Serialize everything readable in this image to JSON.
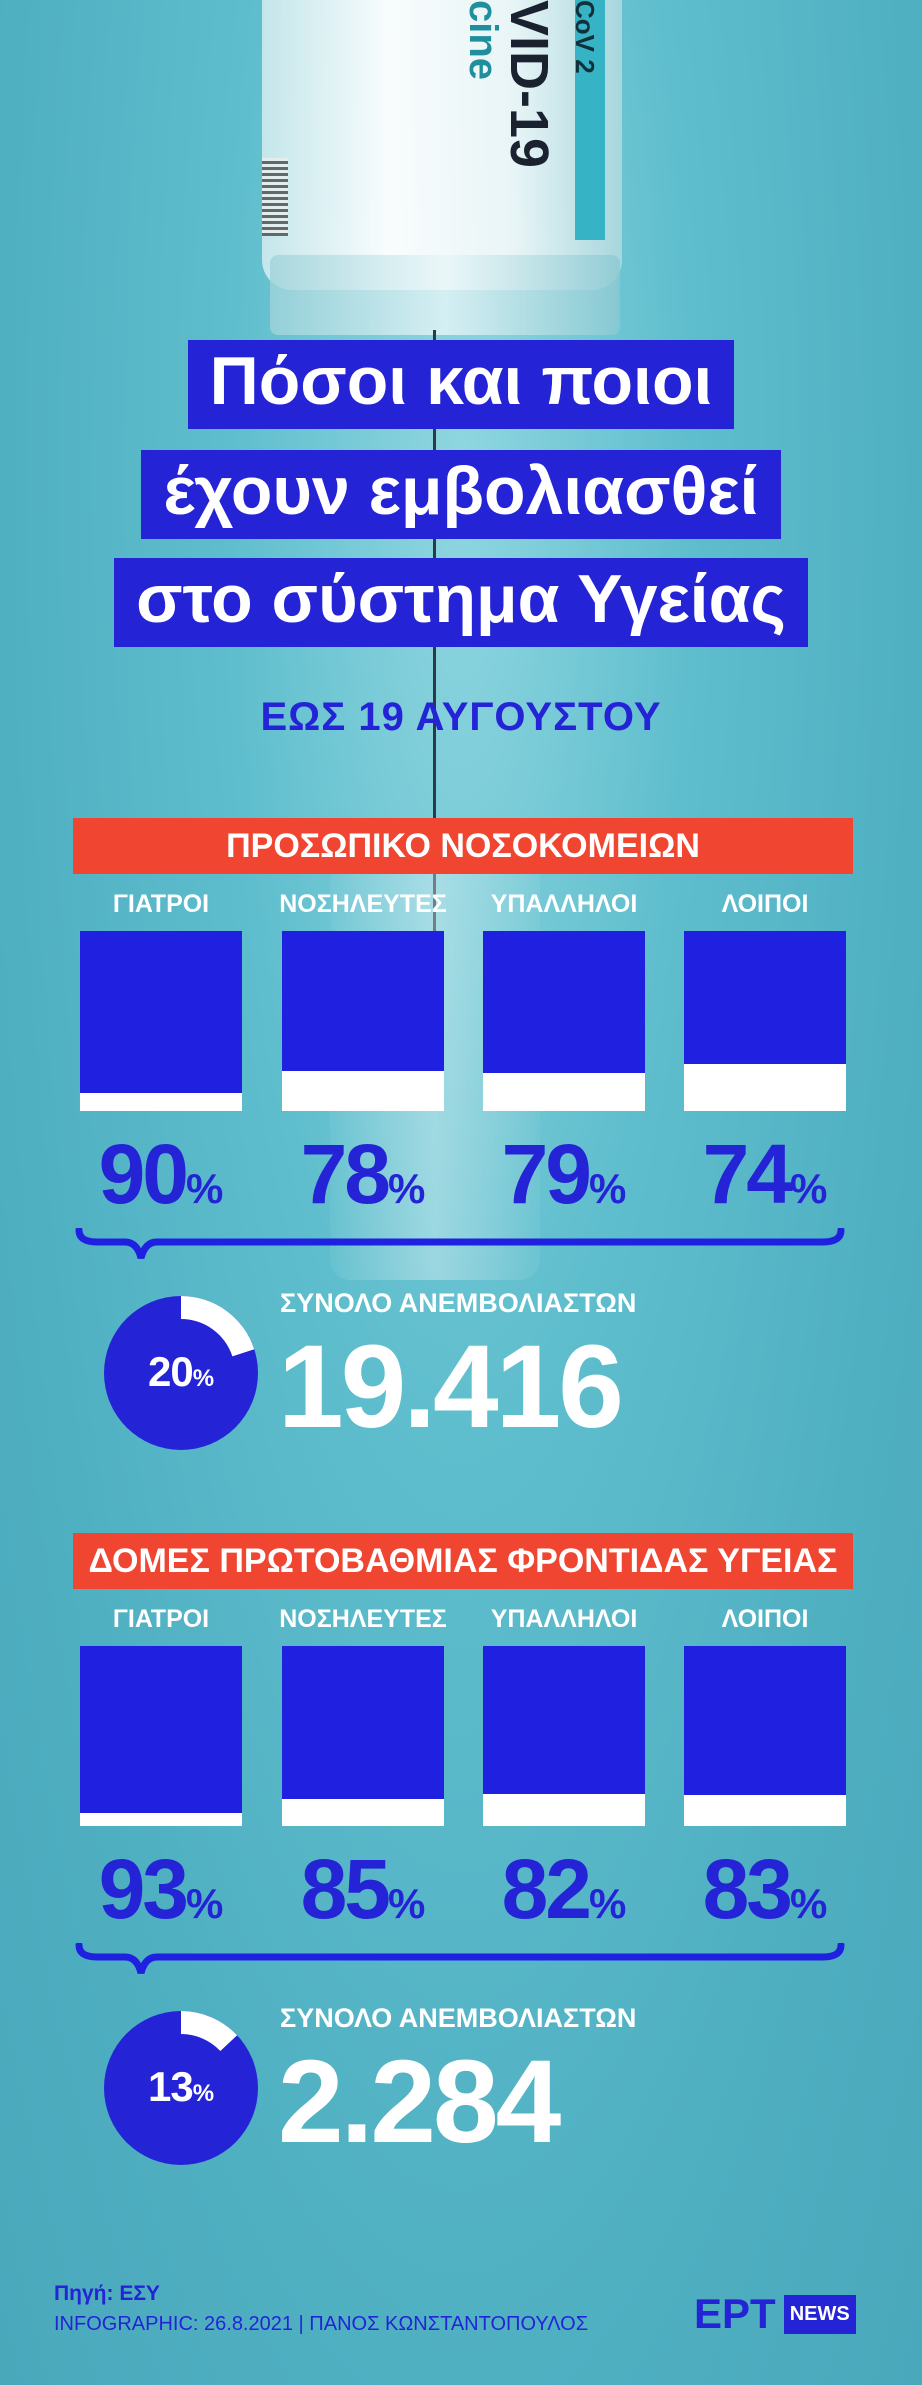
{
  "title_lines": [
    "Πόσοι και ποιοι",
    "έχουν εμβολιασθεί",
    "στο σύστημα Υγείας"
  ],
  "subtitle": "ΕΩΣ 19 ΑΥΓΟΥΣΤΟΥ",
  "background_text": {
    "vial_main": "VID-19",
    "vial_sub": "cine",
    "vial_stripe": "CoV 2"
  },
  "colors": {
    "accent_blue": "#2424d6",
    "section_red": "#f04530",
    "background": "#5fbecd"
  },
  "sections": [
    {
      "header": "ΠΡΟΣΩΠΙΚΟ ΝΟΣΟΚΟΜΕΙΩΝ",
      "columns": [
        {
          "label": "ΓΙΑΤΡΟΙ",
          "value": 90,
          "unit": "%"
        },
        {
          "label": "ΝΟΣΗΛΕΥΤΕΣ",
          "value": 78,
          "unit": "%"
        },
        {
          "label": "ΥΠΑΛΛΗΛΟΙ",
          "value": 79,
          "unit": "%"
        },
        {
          "label": "ΛΟΙΠΟΙ",
          "value": 74,
          "unit": "%"
        }
      ],
      "unvaccinated_pct": 20,
      "unvaccinated_pct_label": "20",
      "total_label": "ΣΥΝΟΛΟ ΑΝΕΜΒΟΛΙΑΣΤΩΝ",
      "total_value": "19.416"
    },
    {
      "header": "ΔΟΜΕΣ ΠΡΩΤΟΒΑΘΜΙΑΣ ΦΡΟΝΤΙΔΑΣ ΥΓΕΙΑΣ",
      "columns": [
        {
          "label": "ΓΙΑΤΡΟΙ",
          "value": 93,
          "unit": "%"
        },
        {
          "label": "ΝΟΣΗΛΕΥΤΕΣ",
          "value": 85,
          "unit": "%"
        },
        {
          "label": "ΥΠΑΛΛΗΛΟΙ",
          "value": 82,
          "unit": "%"
        },
        {
          "label": "ΛΟΙΠΟΙ",
          "value": 83,
          "unit": "%"
        }
      ],
      "unvaccinated_pct": 13,
      "unvaccinated_pct_label": "13",
      "total_label": "ΣΥΝΟΛΟ ΑΝΕΜΒΟΛΙΑΣΤΩΝ",
      "total_value": "2.284"
    }
  ],
  "footer": {
    "source": "Πηγή: ΕΣΥ",
    "credit": "INFOGRAPHIC: 26.8.2021 | ΠΑΝΟΣ ΚΩΝΣΤΑΝΤΟΠΟΥΛΟΣ",
    "logo_text": "ΕΡΤ",
    "logo_badge": "NEWS"
  },
  "chart_data": [
    {
      "type": "bar",
      "title": "ΠΡΟΣΩΠΙΚΟ ΝΟΣΟΚΟΜΕΙΩΝ",
      "categories": [
        "ΓΙΑΤΡΟΙ",
        "ΝΟΣΗΛΕΥΤΕΣ",
        "ΥΠΑΛΛΗΛΟΙ",
        "ΛΟΙΠΟΙ"
      ],
      "values": [
        90,
        78,
        79,
        74
      ],
      "ylim": [
        0,
        100
      ],
      "unit": "%"
    },
    {
      "type": "pie",
      "values": [
        20,
        80
      ],
      "unit": "%"
    },
    {
      "type": "bar",
      "title": "ΔΟΜΕΣ ΠΡΩΤΟΒΑΘΜΙΑΣ ΦΡΟΝΤΙΔΑΣ ΥΓΕΙΑΣ",
      "categories": [
        "ΓΙΑΤΡΟΙ",
        "ΝΟΣΗΛΕΥΤΕΣ",
        "ΥΠΑΛΛΗΛΟΙ",
        "ΛΟΙΠΟΙ"
      ],
      "values": [
        93,
        85,
        82,
        83
      ],
      "ylim": [
        0,
        100
      ],
      "unit": "%"
    },
    {
      "type": "pie",
      "values": [
        13,
        87
      ],
      "unit": "%"
    }
  ]
}
